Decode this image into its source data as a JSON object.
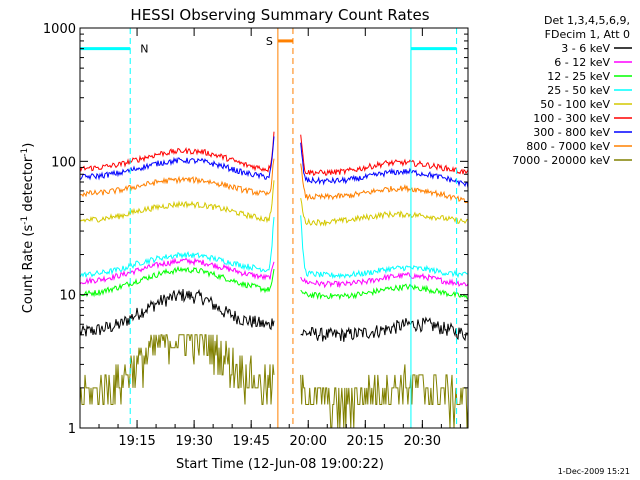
{
  "chart_data": {
    "type": "line",
    "title": "HESSI Observing Summary Count Rates",
    "xlabel": "Start Time (12-Jun-08 19:00:22)",
    "ylabel_main": "Count Rate (s",
    "ylabel_sup1": "-1",
    "ylabel_mid": " detector",
    "ylabel_sup2": "-1",
    "ylabel_end": ")",
    "yscale": "log",
    "ylim": [
      1,
      1000
    ],
    "xlim": [
      19.0,
      20.7
    ],
    "x_ticks": [
      {
        "x": 19.25,
        "label": "19:15"
      },
      {
        "x": 19.5,
        "label": "19:30"
      },
      {
        "x": 19.75,
        "label": "19:45"
      },
      {
        "x": 20.0,
        "label": "20:00"
      },
      {
        "x": 20.25,
        "label": "20:15"
      },
      {
        "x": 20.5,
        "label": "20:30"
      }
    ],
    "y_ticks": [
      {
        "y": 1,
        "label": "1"
      },
      {
        "y": 10,
        "label": "10"
      },
      {
        "y": 100,
        "label": "100"
      },
      {
        "y": 1000,
        "label": "1000"
      }
    ],
    "legend_header": [
      "Det 1,3,4,5,6,9,",
      "FDecim 1, Att 0"
    ],
    "gap": [
      19.85,
      19.967
    ],
    "series": [
      {
        "name": "3 - 6 keV",
        "color": "#000000",
        "values": [
          5.2,
          5.5,
          6.0,
          7.5,
          9.0,
          10.0,
          9.5,
          7.5,
          6.5,
          6.0,
          5.5,
          5.2,
          5.0,
          5.0,
          5.2,
          5.5,
          6.0,
          6.0,
          5.5,
          5.0
        ],
        "peak_pre": 7.0,
        "peak_post": 5.0
      },
      {
        "name": "6 - 12 keV",
        "color": "#ff00ff",
        "values": [
          12.5,
          13.0,
          14.0,
          15.5,
          17.0,
          18.0,
          17.5,
          16.0,
          14.5,
          13.5,
          13.0,
          12.5,
          12.0,
          12.0,
          12.5,
          13.5,
          14.0,
          13.5,
          12.5,
          12.0
        ],
        "peak_pre": 18.0,
        "peak_post": 14.0
      },
      {
        "name": "12 - 25 keV",
        "color": "#00ff00",
        "values": [
          10.0,
          10.5,
          11.5,
          13.0,
          14.5,
          15.5,
          15.0,
          13.5,
          12.0,
          11.0,
          10.5,
          10.0,
          9.8,
          9.8,
          10.2,
          11.0,
          11.5,
          11.0,
          10.2,
          9.5
        ],
        "peak_pre": 15.0,
        "peak_post": 11.0
      },
      {
        "name": "25 - 50 keV",
        "color": "#00ffff",
        "values": [
          14.0,
          14.5,
          15.5,
          17.5,
          19.0,
          20.0,
          19.5,
          18.0,
          16.5,
          15.5,
          15.0,
          14.5,
          14.0,
          14.0,
          14.5,
          15.5,
          16.0,
          15.5,
          14.5,
          14.0
        ],
        "peak_pre": 40.0,
        "peak_post": 38.0
      },
      {
        "name": "50 - 100 keV",
        "color": "#d4c800",
        "values": [
          36.0,
          37.0,
          39.0,
          43.0,
          46.0,
          48.0,
          47.0,
          44.0,
          40.0,
          37.0,
          36.0,
          35.0,
          35.0,
          36.0,
          38.0,
          40.0,
          40.0,
          39.0,
          37.0,
          35.0
        ],
        "peak_pre": 70.0,
        "peak_post": 55.0
      },
      {
        "name": "100 - 300 keV",
        "color": "#ff0000",
        "values": [
          88.0,
          90.0,
          95.0,
          105.0,
          115.0,
          120.0,
          118.0,
          108.0,
          95.0,
          88.0,
          85.0,
          83.0,
          82.0,
          84.0,
          90.0,
          97.0,
          98.0,
          94.0,
          88.0,
          82.0
        ],
        "peak_pre": 165.0,
        "peak_post": 165.0
      },
      {
        "name": "300 - 800 keV",
        "color": "#0000ff",
        "values": [
          76.0,
          78.0,
          82.0,
          90.0,
          98.0,
          102.0,
          100.0,
          92.0,
          82.0,
          77.0,
          74.0,
          72.0,
          71.0,
          72.0,
          76.0,
          82.0,
          84.0,
          80.0,
          74.0,
          66.0
        ],
        "peak_pre": 150.0,
        "peak_post": 140.0
      },
      {
        "name": "800 - 7000 keV",
        "color": "#ff8000",
        "values": [
          57.0,
          58.0,
          61.0,
          66.0,
          71.0,
          73.0,
          72.0,
          67.0,
          61.0,
          57.0,
          55.0,
          54.0,
          54.0,
          55.0,
          58.0,
          62.0,
          63.0,
          60.0,
          55.0,
          49.0
        ],
        "peak_pre": 110.0,
        "peak_post": 100.0
      },
      {
        "name": "7000 - 20000 keV",
        "color": "#808000",
        "values": [
          1.7,
          1.9,
          2.3,
          3.2,
          4.5,
          5.0,
          4.6,
          3.5,
          2.6,
          2.1,
          1.9,
          1.8,
          1.6,
          1.6,
          1.8,
          2.0,
          2.1,
          2.0,
          1.8,
          1.6
        ],
        "peak_pre": 2.5,
        "peak_post": 2.0
      }
    ],
    "annotations": [
      {
        "id": "night",
        "label": "N",
        "color": "#00ffff",
        "start": 19.0,
        "end": 19.22,
        "y": 700,
        "dash_at": [
          19.22
        ]
      },
      {
        "id": "saa",
        "label": "S",
        "color": "#ff8000",
        "start": 19.867,
        "end": 19.933,
        "y": 800,
        "solid_at": [
          19.867
        ],
        "dash_at": [
          19.933
        ]
      },
      {
        "id": "night2",
        "label": "",
        "color": "#00ffff",
        "start": 20.45,
        "end": 20.65,
        "y": 700,
        "solid_at": [
          20.45
        ],
        "dash_at": [
          20.65
        ]
      }
    ],
    "timestamp": "1-Dec-2009 15:21"
  }
}
